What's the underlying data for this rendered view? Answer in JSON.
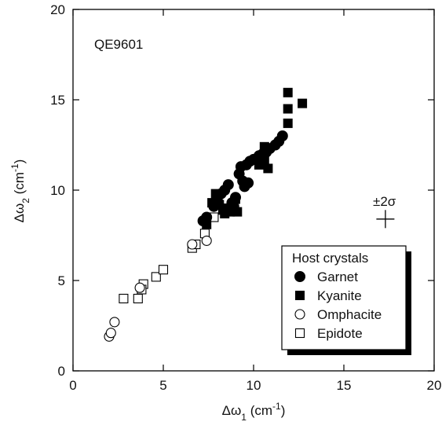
{
  "chart_data": {
    "type": "scatter",
    "xlim": [
      0,
      20
    ],
    "ylim": [
      0,
      20
    ],
    "x_ticks": [
      0,
      5,
      10,
      15,
      20
    ],
    "y_ticks": [
      0,
      5,
      10,
      15,
      20
    ],
    "xlabel": {
      "prefix": "Δω",
      "sub": "1",
      "unit": " (cm",
      "sup": "-1",
      "close": ")"
    },
    "ylabel": {
      "prefix": "Δω",
      "sub": "2",
      "unit": " (cm",
      "sup": "-1",
      "close": ")"
    },
    "sample_label": "QE9601",
    "error_label": "±2σ",
    "error_bar": {
      "x": 17.3,
      "y": 8.4,
      "dx": 0.5,
      "dy": 0.5
    },
    "grid": false,
    "legend": {
      "title": "Host crystals",
      "placement": "bottom-right"
    },
    "series": [
      {
        "name": "Garnet",
        "marker": "filled-circle",
        "points": [
          [
            7.2,
            8.3
          ],
          [
            7.4,
            8.5
          ],
          [
            7.8,
            9.1
          ],
          [
            8.0,
            9.4
          ],
          [
            8.2,
            9.8
          ],
          [
            8.4,
            10.0
          ],
          [
            8.6,
            10.3
          ],
          [
            8.8,
            9.3
          ],
          [
            9.0,
            9.6
          ],
          [
            9.2,
            10.9
          ],
          [
            9.3,
            11.3
          ],
          [
            9.4,
            10.5
          ],
          [
            9.5,
            10.2
          ],
          [
            9.6,
            11.4
          ],
          [
            9.8,
            11.6
          ],
          [
            10.0,
            11.7
          ],
          [
            10.3,
            11.9
          ],
          [
            10.5,
            12.0
          ],
          [
            10.7,
            12.1
          ],
          [
            10.9,
            12.3
          ],
          [
            11.2,
            12.5
          ],
          [
            11.4,
            12.7
          ],
          [
            11.6,
            13.0
          ],
          [
            9.7,
            10.4
          ],
          [
            8.9,
            9.1
          ]
        ]
      },
      {
        "name": "Kyanite",
        "marker": "filled-square",
        "points": [
          [
            7.4,
            8.1
          ],
          [
            7.7,
            9.3
          ],
          [
            7.9,
            9.8
          ],
          [
            8.1,
            9.2
          ],
          [
            8.3,
            8.9
          ],
          [
            8.5,
            9.0
          ],
          [
            8.7,
            8.8
          ],
          [
            9.0,
            9.5
          ],
          [
            9.1,
            8.8
          ],
          [
            10.3,
            11.4
          ],
          [
            10.6,
            11.7
          ],
          [
            10.6,
            12.4
          ],
          [
            10.8,
            11.2
          ],
          [
            11.9,
            13.7
          ],
          [
            11.9,
            14.5
          ],
          [
            11.9,
            15.4
          ],
          [
            12.7,
            14.8
          ],
          [
            8.0,
            9.5
          ],
          [
            8.4,
            8.7
          ]
        ]
      },
      {
        "name": "Omphacite",
        "marker": "open-circle",
        "points": [
          [
            2.0,
            1.9
          ],
          [
            2.1,
            2.1
          ],
          [
            2.3,
            2.7
          ],
          [
            3.7,
            4.6
          ],
          [
            6.6,
            7.0
          ],
          [
            7.4,
            7.2
          ]
        ]
      },
      {
        "name": "Epidote",
        "marker": "open-square",
        "points": [
          [
            2.8,
            4.0
          ],
          [
            3.6,
            4.0
          ],
          [
            3.9,
            4.8
          ],
          [
            4.6,
            5.2
          ],
          [
            5.0,
            5.6
          ],
          [
            6.6,
            6.8
          ],
          [
            6.8,
            7.0
          ],
          [
            7.3,
            7.6
          ],
          [
            7.8,
            8.5
          ],
          [
            3.8,
            4.5
          ]
        ]
      }
    ]
  }
}
